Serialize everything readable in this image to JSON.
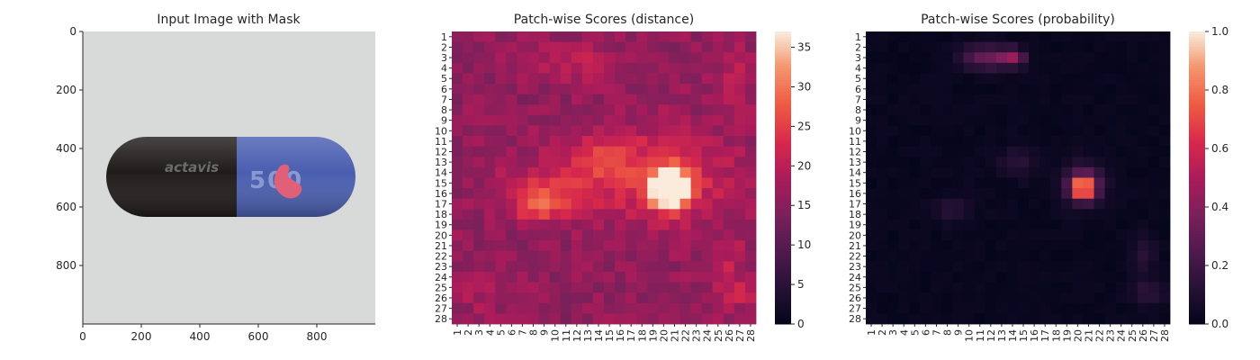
{
  "chart_data": [
    {
      "type": "image",
      "title": "Input Image with Mask",
      "xlim": [
        0,
        1000
      ],
      "ylim": [
        1000,
        0
      ],
      "x_ticks": [
        0,
        200,
        400,
        600,
        800
      ],
      "y_ticks": [
        0,
        200,
        400,
        600,
        800
      ],
      "image": {
        "background_color": "#d7dad9",
        "capsule_body_color": "#1f1c1b",
        "capsule_cap_color": "#4a5eb0",
        "mask_color": "#e0607a",
        "brand_text": "actavis",
        "dose_text": "500"
      }
    },
    {
      "type": "heatmap",
      "title": "Patch-wise Scores (distance)",
      "x_labels": [
        "1",
        "2",
        "3",
        "4",
        "5",
        "6",
        "7",
        "8",
        "9",
        "10",
        "11",
        "12",
        "13",
        "14",
        "15",
        "16",
        "17",
        "18",
        "19",
        "20",
        "21",
        "22",
        "23",
        "24",
        "25",
        "26",
        "27",
        "28"
      ],
      "y_labels": [
        "1",
        "2",
        "3",
        "4",
        "5",
        "6",
        "7",
        "8",
        "9",
        "10",
        "11",
        "12",
        "13",
        "14",
        "15",
        "16",
        "17",
        "18",
        "19",
        "20",
        "21",
        "22",
        "23",
        "24",
        "25",
        "26",
        "27",
        "28"
      ],
      "colorbar": {
        "min": 0,
        "max": 37,
        "ticks": [
          0,
          5,
          10,
          15,
          20,
          25,
          30,
          35
        ]
      },
      "colormap": "rocket",
      "baseline": 16,
      "hotspots": [
        {
          "row": 15.5,
          "col": 20.5,
          "peak": 36,
          "sigma_row": 1.2,
          "sigma_col": 1.2
        },
        {
          "row": 14.5,
          "col": 19.5,
          "peak": 8,
          "sigma_row": 3.0,
          "sigma_col": 5.0
        },
        {
          "row": 16.0,
          "col": 9.0,
          "peak": 8,
          "sigma_row": 1.6,
          "sigma_col": 3.0
        },
        {
          "row": 17.5,
          "col": 8.5,
          "peak": 6,
          "sigma_row": 1.0,
          "sigma_col": 1.2
        },
        {
          "row": 12.5,
          "col": 14.0,
          "peak": 6,
          "sigma_row": 1.5,
          "sigma_col": 2.5
        },
        {
          "row": 3.5,
          "col": 11.5,
          "peak": 4,
          "sigma_row": 1.2,
          "sigma_col": 3.0
        },
        {
          "row": 5.0,
          "col": 26.5,
          "peak": 4,
          "sigma_row": 2.0,
          "sigma_col": 1.2
        },
        {
          "row": 22.0,
          "col": 26.0,
          "peak": 4,
          "sigma_row": 1.5,
          "sigma_col": 1.2
        },
        {
          "row": 25.5,
          "col": 26.5,
          "peak": 5,
          "sigma_row": 1.2,
          "sigma_col": 1.5
        },
        {
          "row": 25.0,
          "col": 3.5,
          "peak": 3,
          "sigma_row": 1.5,
          "sigma_col": 2.0
        }
      ]
    },
    {
      "type": "heatmap",
      "title": "Patch-wise Scores (probability)",
      "x_labels": [
        "1",
        "2",
        "3",
        "4",
        "5",
        "6",
        "7",
        "8",
        "9",
        "10",
        "11",
        "12",
        "13",
        "14",
        "15",
        "16",
        "17",
        "18",
        "19",
        "20",
        "21",
        "22",
        "23",
        "24",
        "25",
        "26",
        "27",
        "28"
      ],
      "y_labels": [
        "1",
        "2",
        "3",
        "4",
        "5",
        "6",
        "7",
        "8",
        "9",
        "10",
        "11",
        "12",
        "13",
        "14",
        "15",
        "16",
        "17",
        "18",
        "19",
        "20",
        "21",
        "22",
        "23",
        "24",
        "25",
        "26",
        "27",
        "28"
      ],
      "colorbar": {
        "min": 0,
        "max": 1.0,
        "ticks": [
          0.0,
          0.2,
          0.4,
          0.6,
          0.8,
          1.0
        ],
        "tick_labels": [
          "0.0",
          "0.2",
          "0.4",
          "0.6",
          "0.8",
          "1.0"
        ]
      },
      "colormap": "rocket",
      "baseline": 0.02,
      "hotspots": [
        {
          "row": 15.5,
          "col": 20.5,
          "peak": 0.85,
          "sigma_row": 0.7,
          "sigma_col": 0.7
        },
        {
          "row": 15.0,
          "col": 20.5,
          "peak": 0.25,
          "sigma_row": 1.4,
          "sigma_col": 1.4
        },
        {
          "row": 3.0,
          "col": 11.5,
          "peak": 0.3,
          "sigma_row": 0.8,
          "sigma_col": 1.6
        },
        {
          "row": 3.0,
          "col": 14.0,
          "peak": 0.35,
          "sigma_row": 0.6,
          "sigma_col": 0.8
        },
        {
          "row": 13.0,
          "col": 14.5,
          "peak": 0.12,
          "sigma_row": 1.0,
          "sigma_col": 1.2
        },
        {
          "row": 17.5,
          "col": 8.5,
          "peak": 0.12,
          "sigma_row": 0.8,
          "sigma_col": 1.2
        },
        {
          "row": 22.0,
          "col": 26.0,
          "peak": 0.1,
          "sigma_row": 1.5,
          "sigma_col": 0.8
        },
        {
          "row": 25.5,
          "col": 26.5,
          "peak": 0.12,
          "sigma_row": 0.8,
          "sigma_col": 1.2
        }
      ]
    }
  ]
}
